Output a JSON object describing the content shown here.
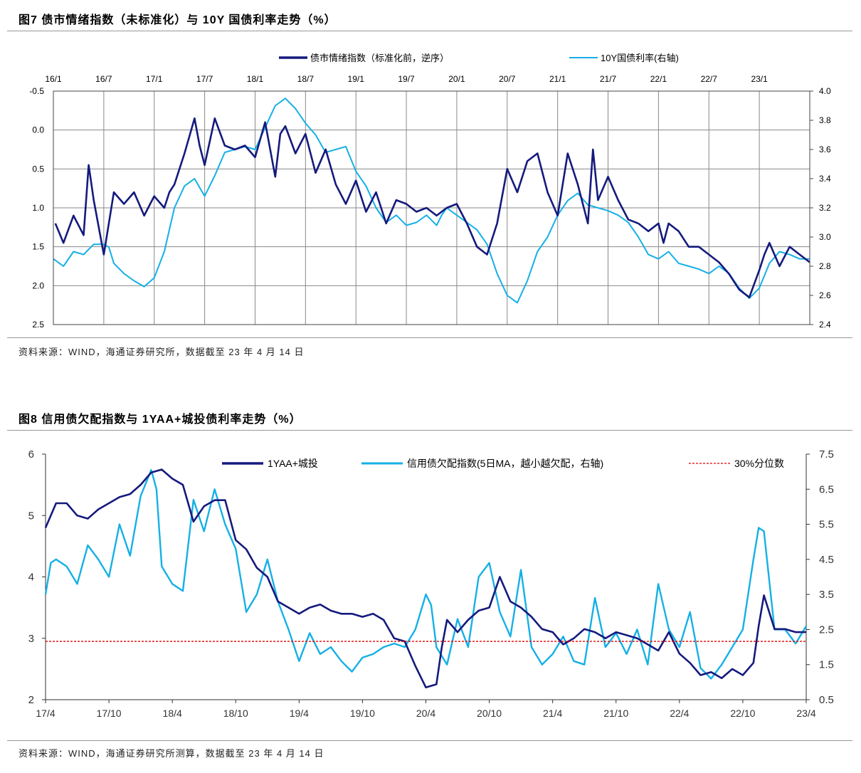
{
  "figures": [
    {
      "title": "图7 债市情绪指数（未标准化）与 10Y 国债利率走势（%）",
      "source": "资料来源：WIND，海通证券研究所，数据截至 23 年 4 月 14 日"
    },
    {
      "title": "图8 信用债欠配指数与 1YAA+城投债利率走势（%）",
      "source": "资料来源：WIND，海通证券研究所测算，数据截至 23 年 4 月 14 日"
    }
  ],
  "chart_data": [
    {
      "type": "line",
      "title": "债市情绪指数（未标准化）与 10Y 国债利率走势（%）",
      "grid": true,
      "legend_position": "top-center",
      "x_ticks": [
        "16/1",
        "16/7",
        "17/1",
        "17/7",
        "18/1",
        "18/7",
        "19/1",
        "19/7",
        "20/1",
        "20/7",
        "21/1",
        "21/7",
        "22/1",
        "22/7",
        "23/1"
      ],
      "x_range_months": [
        0,
        75
      ],
      "y_left": {
        "ylim": [
          -0.5,
          2.5
        ],
        "inverted": true,
        "ticks": [
          "-0.5",
          "0.0",
          "0.5",
          "1.0",
          "1.5",
          "2.0",
          "2.5"
        ]
      },
      "y_right": {
        "ylim": [
          2.4,
          4.0
        ],
        "ticks": [
          "4.0",
          "3.8",
          "3.6",
          "3.4",
          "3.2",
          "3.0",
          "2.8",
          "2.6",
          "2.4"
        ]
      },
      "series": [
        {
          "name": "债市情绪指数（标准化前，逆序）",
          "axis": "left",
          "color": "#151a7d",
          "x": [
            0.2,
            1,
            2,
            3,
            3.5,
            4,
            5,
            6,
            7,
            8,
            9,
            10,
            11,
            11.5,
            12,
            13,
            14,
            14.5,
            15,
            16,
            17,
            18,
            19,
            20,
            21,
            22,
            22.5,
            23,
            24,
            25,
            26,
            27,
            28,
            29,
            30,
            31,
            32,
            33,
            34,
            35,
            36,
            37,
            38,
            39,
            40,
            41,
            42,
            43,
            44,
            45,
            46,
            47,
            48,
            49,
            50,
            51,
            52,
            53,
            53.5,
            54,
            55,
            56,
            57,
            58,
            59,
            60,
            60.5,
            61,
            62,
            63,
            64,
            65,
            66,
            67,
            68,
            69,
            70,
            70.5,
            71,
            72,
            73,
            74,
            75
          ],
          "values": [
            1.2,
            1.45,
            1.1,
            1.35,
            0.45,
            0.9,
            1.6,
            0.8,
            0.95,
            0.8,
            1.1,
            0.85,
            1.0,
            0.8,
            0.7,
            0.3,
            -0.15,
            0.2,
            0.45,
            -0.15,
            0.2,
            0.25,
            0.2,
            0.35,
            -0.1,
            0.6,
            0.05,
            -0.05,
            0.3,
            0.05,
            0.55,
            0.25,
            0.7,
            0.95,
            0.65,
            1.05,
            0.8,
            1.2,
            0.9,
            0.95,
            1.05,
            1.0,
            1.1,
            1.0,
            0.95,
            1.2,
            1.5,
            1.6,
            1.2,
            0.5,
            0.8,
            0.4,
            0.3,
            0.8,
            1.1,
            0.3,
            0.7,
            1.2,
            0.25,
            0.9,
            0.6,
            0.9,
            1.15,
            1.2,
            1.3,
            1.2,
            1.45,
            1.2,
            1.3,
            1.5,
            1.5,
            1.6,
            1.7,
            1.85,
            2.05,
            2.15,
            1.8,
            1.6,
            1.45,
            1.75,
            1.5,
            1.6,
            1.7
          ]
        },
        {
          "name": "10Y国债利率(右轴)",
          "axis": "right",
          "color": "#15b0e6",
          "x": [
            0,
            1,
            2,
            3,
            4,
            5,
            5.5,
            6,
            7,
            8,
            9,
            10,
            11,
            12,
            13,
            14,
            15,
            16,
            17,
            18,
            19,
            20,
            21,
            22,
            23,
            24,
            25,
            26,
            27,
            28,
            29,
            30,
            31,
            32,
            33,
            34,
            35,
            36,
            37,
            38,
            38.5,
            39,
            40,
            41,
            42,
            43,
            44,
            45,
            46,
            47,
            48,
            49,
            50,
            51,
            52,
            53,
            54,
            55,
            56,
            57,
            58,
            59,
            60,
            61,
            62,
            63,
            64,
            65,
            66,
            67,
            68,
            69,
            70,
            71,
            72,
            73,
            74,
            75
          ],
          "values": [
            2.85,
            2.8,
            2.9,
            2.88,
            2.95,
            2.95,
            2.93,
            2.82,
            2.75,
            2.7,
            2.66,
            2.72,
            2.9,
            3.2,
            3.35,
            3.4,
            3.28,
            3.42,
            3.58,
            3.6,
            3.62,
            3.6,
            3.75,
            3.9,
            3.95,
            3.88,
            3.78,
            3.7,
            3.58,
            3.6,
            3.62,
            3.45,
            3.35,
            3.2,
            3.1,
            3.15,
            3.08,
            3.1,
            3.15,
            3.08,
            3.15,
            3.2,
            3.15,
            3.1,
            3.05,
            2.95,
            2.75,
            2.6,
            2.55,
            2.7,
            2.9,
            3.0,
            3.15,
            3.25,
            3.3,
            3.22,
            3.2,
            3.18,
            3.15,
            3.1,
            3.0,
            2.88,
            2.85,
            2.9,
            2.82,
            2.8,
            2.78,
            2.75,
            2.8,
            2.75,
            2.65,
            2.58,
            2.65,
            2.82,
            2.9,
            2.88,
            2.85,
            2.85
          ]
        }
      ]
    },
    {
      "type": "line",
      "title": "信用债欠配指数与 1YAA+城投债利率走势（%）",
      "grid": false,
      "legend_position": "top",
      "x_ticks": [
        "17/4",
        "17/10",
        "18/4",
        "18/10",
        "19/4",
        "19/10",
        "20/4",
        "20/10",
        "21/4",
        "21/10",
        "22/4",
        "22/10",
        "23/4"
      ],
      "x_range_months": [
        0,
        72
      ],
      "y_left": {
        "ylim": [
          2,
          6
        ],
        "ticks": [
          "2",
          "3",
          "4",
          "5",
          "6"
        ]
      },
      "y_right": {
        "ylim": [
          0.5,
          7.5
        ],
        "ticks": [
          "7.5",
          "6.5",
          "5.5",
          "4.5",
          "3.5",
          "2.5",
          "1.5",
          "0.5"
        ]
      },
      "reference_line": {
        "name": "30%分位数",
        "axis": "left",
        "value": 2.95,
        "color": "#e00000"
      },
      "series": [
        {
          "name": "1YAA+城投",
          "axis": "left",
          "color": "#151a7d",
          "x": [
            0,
            1,
            2,
            3,
            4,
            5,
            6,
            7,
            8,
            9,
            10,
            11,
            12,
            13,
            14,
            15,
            16,
            17,
            18,
            19,
            20,
            21,
            22,
            23,
            24,
            25,
            26,
            27,
            28,
            29,
            30,
            31,
            32,
            33,
            34,
            35,
            36,
            37,
            37.5,
            38,
            39,
            40,
            41,
            42,
            43,
            44,
            45,
            46,
            47,
            48,
            49,
            50,
            51,
            52,
            53,
            54,
            55,
            56,
            57,
            58,
            59,
            60,
            61,
            62,
            63,
            64,
            65,
            66,
            67,
            67.5,
            68,
            69,
            70,
            71,
            72
          ],
          "values": [
            4.8,
            5.2,
            5.2,
            5.0,
            4.95,
            5.1,
            5.2,
            5.3,
            5.35,
            5.5,
            5.7,
            5.75,
            5.6,
            5.5,
            4.9,
            5.15,
            5.25,
            5.25,
            4.6,
            4.45,
            4.15,
            4.0,
            3.6,
            3.5,
            3.4,
            3.5,
            3.55,
            3.45,
            3.4,
            3.4,
            3.35,
            3.4,
            3.3,
            3.0,
            2.95,
            2.55,
            2.2,
            2.25,
            2.85,
            3.3,
            3.1,
            3.3,
            3.45,
            3.5,
            4.0,
            3.6,
            3.5,
            3.35,
            3.15,
            3.1,
            2.9,
            3.0,
            3.15,
            3.1,
            3.0,
            3.1,
            3.05,
            3.0,
            2.9,
            2.8,
            3.1,
            2.75,
            2.6,
            2.4,
            2.45,
            2.35,
            2.5,
            2.4,
            2.6,
            3.2,
            3.7,
            3.15,
            3.15,
            3.1,
            3.1
          ]
        },
        {
          "name": "信用债欠配指数(5日MA，越小越欠配，右轴)",
          "axis": "right",
          "color": "#15b0e6",
          "x": [
            0,
            0.5,
            1,
            2,
            3,
            4,
            5,
            6,
            7,
            8,
            9,
            10,
            10.5,
            11,
            12,
            13,
            14,
            15,
            16,
            17,
            18,
            19,
            20,
            21,
            22,
            23,
            24,
            25,
            26,
            27,
            28,
            29,
            30,
            31,
            32,
            33,
            34,
            35,
            36,
            36.5,
            37,
            38,
            39,
            40,
            41,
            42,
            43,
            44,
            45,
            46,
            47,
            48,
            49,
            50,
            51,
            52,
            53,
            54,
            55,
            56,
            57,
            58,
            59,
            60,
            61,
            62,
            63,
            64,
            65,
            66,
            67,
            67.5,
            68,
            69,
            70,
            71,
            72
          ],
          "values": [
            3.5,
            4.4,
            4.5,
            4.3,
            3.8,
            4.9,
            4.5,
            4.0,
            5.5,
            4.6,
            6.3,
            7.05,
            6.5,
            4.3,
            3.8,
            3.6,
            6.2,
            5.3,
            6.5,
            5.5,
            4.8,
            3.0,
            3.5,
            4.5,
            3.3,
            2.5,
            1.6,
            2.4,
            1.8,
            2.0,
            1.6,
            1.3,
            1.7,
            1.8,
            2.0,
            2.1,
            2.0,
            2.5,
            3.5,
            3.2,
            2.0,
            1.5,
            2.8,
            2.0,
            4.0,
            4.4,
            3.0,
            2.3,
            4.2,
            2.0,
            1.5,
            1.8,
            2.3,
            1.6,
            1.5,
            3.4,
            2.0,
            2.4,
            1.8,
            2.5,
            1.5,
            3.8,
            2.5,
            2.0,
            3.0,
            1.4,
            1.1,
            1.5,
            2.0,
            2.5,
            4.5,
            5.4,
            5.3,
            2.5,
            2.5,
            2.1,
            2.6
          ]
        }
      ]
    }
  ]
}
